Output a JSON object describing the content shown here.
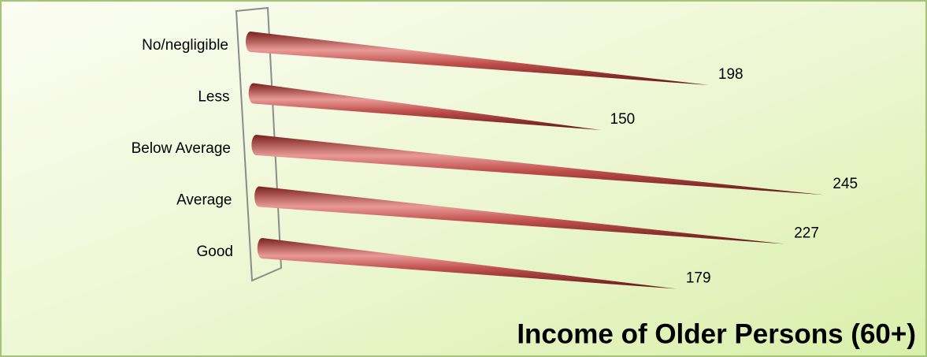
{
  "chart_data": {
    "type": "cone-bar",
    "title": "Income of Older Persons (60+)",
    "categories": [
      "No/negligible",
      "Less",
      "Below Average",
      "Average",
      "Good"
    ],
    "values": [
      198,
      150,
      245,
      227,
      179
    ],
    "color": "#c0504d"
  }
}
